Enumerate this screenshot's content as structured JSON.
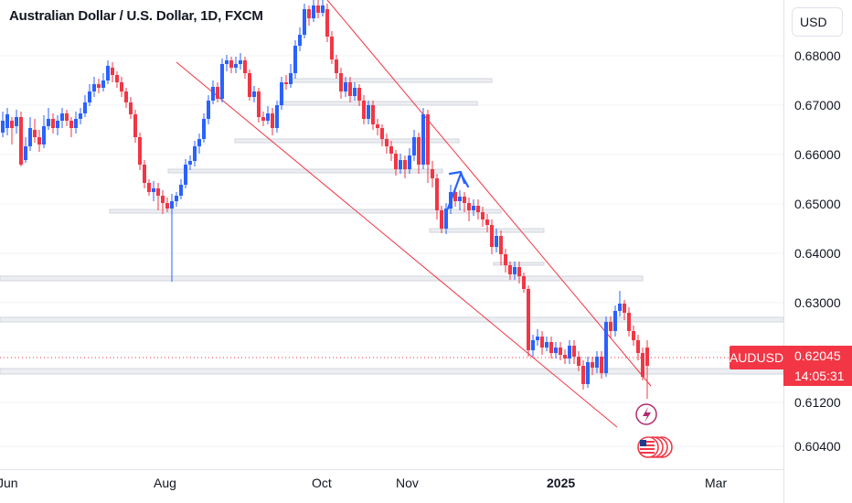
{
  "title": "Australian Dollar / U.S. Dollar, 1D, FXCM",
  "currency": "USD",
  "price_axis": [
    "0.68000",
    "0.67000",
    "0.66000",
    "0.65000",
    "0.64000",
    "0.63000",
    "0.61200",
    "0.60400"
  ],
  "time_axis": [
    "Jun",
    "Aug",
    "Oct",
    "Nov",
    "2025",
    "Mar"
  ],
  "symbol": "AUDUSD",
  "last_price": "0.62045",
  "countdown": "14:05:31",
  "colors": {
    "up": "#2962ff",
    "down": "#f23645",
    "trendline": "#f23645",
    "zone": "#d1d4dc"
  }
}
